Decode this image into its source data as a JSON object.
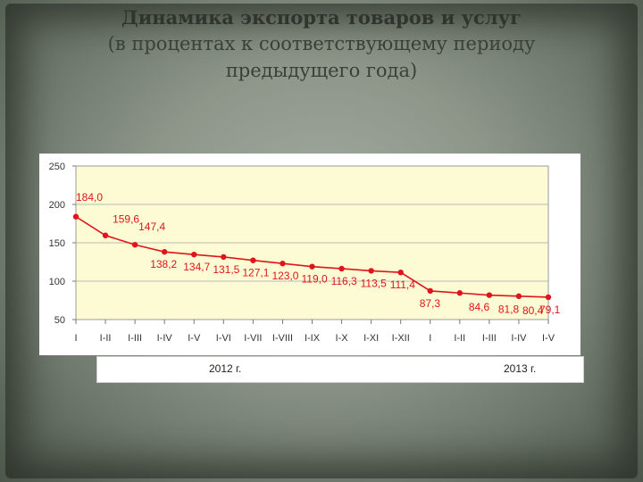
{
  "title": {
    "line1": "Динамика экспорта товаров и услуг",
    "line2": "(в процентах к соответствующему периоду",
    "line3": "предыдущего года)"
  },
  "chart_data": {
    "type": "line",
    "categories": [
      "I",
      "I-II",
      "I-III",
      "I-IV",
      "I-V",
      "I-VI",
      "I-VII",
      "I-VIII",
      "I-IX",
      "I-X",
      "I-XI",
      "I-XII",
      "I",
      "I-II",
      "I-III",
      "I-IV",
      "I-V"
    ],
    "values": [
      184.0,
      159.6,
      147.4,
      138.2,
      134.7,
      131.5,
      127.1,
      123.0,
      119.0,
      116.3,
      113.5,
      111.4,
      87.3,
      84.6,
      81.8,
      80.4,
      79.1
    ],
    "labels": [
      "184,0",
      "159,6",
      "147,4",
      "138,2",
      "134,7",
      "131,5",
      "127,1",
      "123,0",
      "119,0",
      "116,3",
      "113,5",
      "111,4",
      "87,3",
      "84,6",
      "81,8",
      "80,4",
      "79,1"
    ],
    "y_ticks": [
      "50",
      "100",
      "150",
      "200",
      "250"
    ],
    "ylim": [
      50,
      250
    ],
    "grid": true,
    "series_color": "#e0141c",
    "plot_bg": "#fdfbd3",
    "year_groups": [
      "2012 г.",
      "2013 г."
    ]
  }
}
